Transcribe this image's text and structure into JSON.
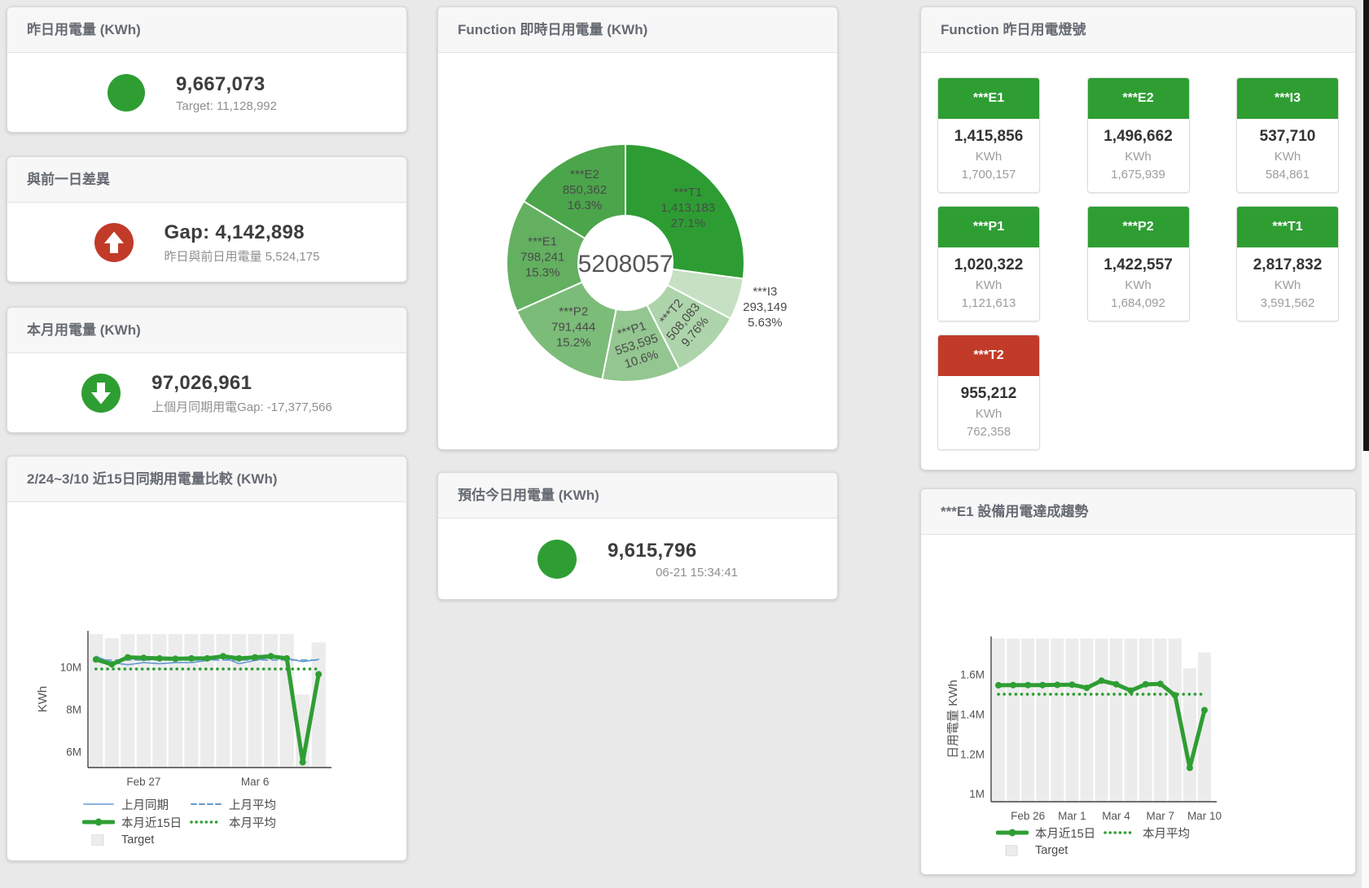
{
  "page": {
    "bg": "#e9e9e9",
    "green": "#2e9e33",
    "red": "#c13b28"
  },
  "cards": {
    "yesterday": {
      "title": "昨日用電量 (KWh)",
      "value": "9,667,073",
      "sub": "Target: 11,128,992",
      "indicator": "green-circle",
      "indicator_color": "#2e9e33"
    },
    "day_gap": {
      "title": "與前一日差異",
      "value": "Gap: 4,142,898",
      "sub": "昨日與前日用電量 5,524,175",
      "indicator": "up-arrow",
      "indicator_color": "#c13b28"
    },
    "month": {
      "title": "本月用電量 (KWh)",
      "value": "97,026,961",
      "sub": "上個月同期用電Gap: -17,377,566",
      "indicator": "down-arrow",
      "indicator_color": "#2e9e33"
    },
    "estimate": {
      "title": "預估今日用電量 (KWh)",
      "value": "9,615,796",
      "sub": "06-21 15:34:41",
      "indicator": "green-circle",
      "indicator_color": "#2e9e33"
    }
  },
  "lights": {
    "title": "Function 昨日用電燈號",
    "green": "#2e9e33",
    "red": "#c13b28",
    "tiles": [
      {
        "label": "***E1",
        "value": "1,415,856",
        "unit": "KWh",
        "target": "1,700,157",
        "status": "green"
      },
      {
        "label": "***E2",
        "value": "1,496,662",
        "unit": "KWh",
        "target": "1,675,939",
        "status": "green"
      },
      {
        "label": "***I3",
        "value": "537,710",
        "unit": "KWh",
        "target": "584,861",
        "status": "green"
      },
      {
        "label": "***P1",
        "value": "1,020,322",
        "unit": "KWh",
        "target": "1,121,613",
        "status": "green"
      },
      {
        "label": "***P2",
        "value": "1,422,557",
        "unit": "KWh",
        "target": "1,684,092",
        "status": "green"
      },
      {
        "label": "***T1",
        "value": "2,817,832",
        "unit": "KWh",
        "target": "3,591,562",
        "status": "green"
      },
      {
        "label": "***T2",
        "value": "955,212",
        "unit": "KWh",
        "target": "762,358",
        "status": "red"
      }
    ]
  },
  "chart_data": [
    {
      "id": "donut",
      "type": "pie",
      "title": "Function 即時日用電量 (KWh)",
      "center_label": "5208057",
      "slices": [
        {
          "name": "***T1",
          "value": 1413183,
          "display": "1,413,183",
          "pct": "27.1%",
          "color": "#2d9d33"
        },
        {
          "name": "***I3",
          "value": 293149,
          "display": "293,149",
          "pct": "5.63%",
          "color": "#c5e0c2",
          "label_outside": true
        },
        {
          "name": "***T2",
          "value": 508083,
          "display": "508,083",
          "pct": "9.76%",
          "color": "#add4aa",
          "label_rotate": -50
        },
        {
          "name": "***P1",
          "value": 553595,
          "display": "553,595",
          "pct": "10.6%",
          "color": "#93c690",
          "label_rotate": -18
        },
        {
          "name": "***P2",
          "value": 791444,
          "display": "791,444",
          "pct": "15.2%",
          "color": "#7cbc79"
        },
        {
          "name": "***E1",
          "value": 798241,
          "display": "798,241",
          "pct": "15.3%",
          "color": "#63b061"
        },
        {
          "name": "***E2",
          "value": 850362,
          "display": "850,362",
          "pct": "16.3%",
          "color": "#4ba54a"
        }
      ]
    },
    {
      "id": "compare",
      "type": "line",
      "title": "2/24~3/10 近15日同期用電量比較 (KWh)",
      "ylabel": "KWh",
      "ylim": [
        5.25,
        11.7
      ],
      "yticks": [
        6,
        8,
        10
      ],
      "ytick_labels": [
        "6M",
        "8M",
        "10M"
      ],
      "x_count": 15,
      "categories": [
        "2/24",
        "2/25",
        "2/26",
        "2/27",
        "2/28",
        "3/1",
        "3/2",
        "3/3",
        "3/4",
        "3/5",
        "3/6",
        "3/7",
        "3/8",
        "3/9",
        "3/10"
      ],
      "xticks": [
        {
          "index": 3,
          "label": "Feb 27"
        },
        {
          "index": 10,
          "label": "Mar 6"
        }
      ],
      "target_bars": {
        "name": "Target",
        "color": "#ececec",
        "values": [
          11.55,
          11.35,
          11.55,
          11.55,
          11.55,
          11.55,
          11.55,
          11.55,
          11.55,
          11.55,
          11.55,
          11.55,
          11.55,
          8.7,
          11.15
        ]
      },
      "series": [
        {
          "name": "上月同期",
          "color": "#639ace",
          "style": "solid",
          "width": 1.6,
          "values": [
            10.5,
            10.2,
            10.1,
            10.2,
            10.15,
            10.2,
            10.2,
            10.3,
            10.45,
            10.15,
            10.3,
            10.45,
            10.4,
            10.25,
            10.35
          ]
        },
        {
          "name": "上月平均",
          "color": "#639ace",
          "style": "dashed",
          "width": 1.6,
          "values": [
            10.32,
            10.32,
            10.32,
            10.32,
            10.32,
            10.32,
            10.32,
            10.32,
            10.32,
            10.32,
            10.32,
            10.32,
            10.32,
            10.32,
            10.32
          ]
        },
        {
          "name": "本月近15日",
          "color": "#2e9e33",
          "style": "solid",
          "width": 5,
          "markers": true,
          "values": [
            10.35,
            10.12,
            10.45,
            10.42,
            10.4,
            10.38,
            10.4,
            10.4,
            10.5,
            10.4,
            10.45,
            10.5,
            10.4,
            5.5,
            9.65
          ]
        },
        {
          "name": "本月平均",
          "color": "#2e9e33",
          "style": "dotted",
          "width": 3.5,
          "values": [
            9.9,
            9.9,
            9.9,
            9.9,
            9.9,
            9.9,
            9.9,
            9.9,
            9.9,
            9.9,
            9.9,
            9.9,
            9.9,
            9.9,
            9.9
          ]
        }
      ],
      "legend_rows": [
        [
          "上月同期",
          "上月平均"
        ],
        [
          "本月近15日",
          "本月平均"
        ],
        [
          "Target"
        ]
      ]
    },
    {
      "id": "e1trend",
      "type": "line",
      "title": "***E1 設備用電達成趨勢",
      "ylabel": "日用電量 KWh",
      "ylim": [
        0.96,
        1.79
      ],
      "yticks": [
        1,
        1.2,
        1.4,
        1.6
      ],
      "ytick_labels": [
        "1M",
        "1.2M",
        "1.4M",
        "1.6M"
      ],
      "x_count": 15,
      "categories": [
        "2/24",
        "2/25",
        "2/26",
        "2/27",
        "2/28",
        "3/1",
        "3/2",
        "3/3",
        "3/4",
        "3/5",
        "3/6",
        "3/7",
        "3/8",
        "3/9",
        "3/10"
      ],
      "xticks": [
        {
          "index": 2,
          "label": "Feb 26"
        },
        {
          "index": 5,
          "label": "Mar 1"
        },
        {
          "index": 8,
          "label": "Mar 4"
        },
        {
          "index": 11,
          "label": "Mar 7"
        },
        {
          "index": 14,
          "label": "Mar 10"
        }
      ],
      "target_bars": {
        "name": "Target",
        "color": "#ececec",
        "values": [
          1.78,
          1.78,
          1.78,
          1.78,
          1.78,
          1.78,
          1.78,
          1.78,
          1.78,
          1.78,
          1.78,
          1.78,
          1.78,
          1.63,
          1.71
        ]
      },
      "series": [
        {
          "name": "本月近15日",
          "color": "#2e9e33",
          "style": "solid",
          "width": 5,
          "markers": true,
          "values": [
            1.545,
            1.546,
            1.546,
            1.546,
            1.547,
            1.548,
            1.532,
            1.568,
            1.55,
            1.518,
            1.55,
            1.552,
            1.495,
            1.13,
            1.42
          ]
        },
        {
          "name": "本月平均",
          "color": "#2e9e33",
          "style": "dotted",
          "width": 3.5,
          "values": [
            1.5,
            1.5,
            1.5,
            1.5,
            1.5,
            1.5,
            1.5,
            1.5,
            1.5,
            1.5,
            1.5,
            1.5,
            1.5,
            1.5,
            1.5
          ]
        }
      ],
      "legend_rows": [
        [
          "本月近15日",
          "本月平均"
        ],
        [
          "Target"
        ]
      ]
    }
  ]
}
